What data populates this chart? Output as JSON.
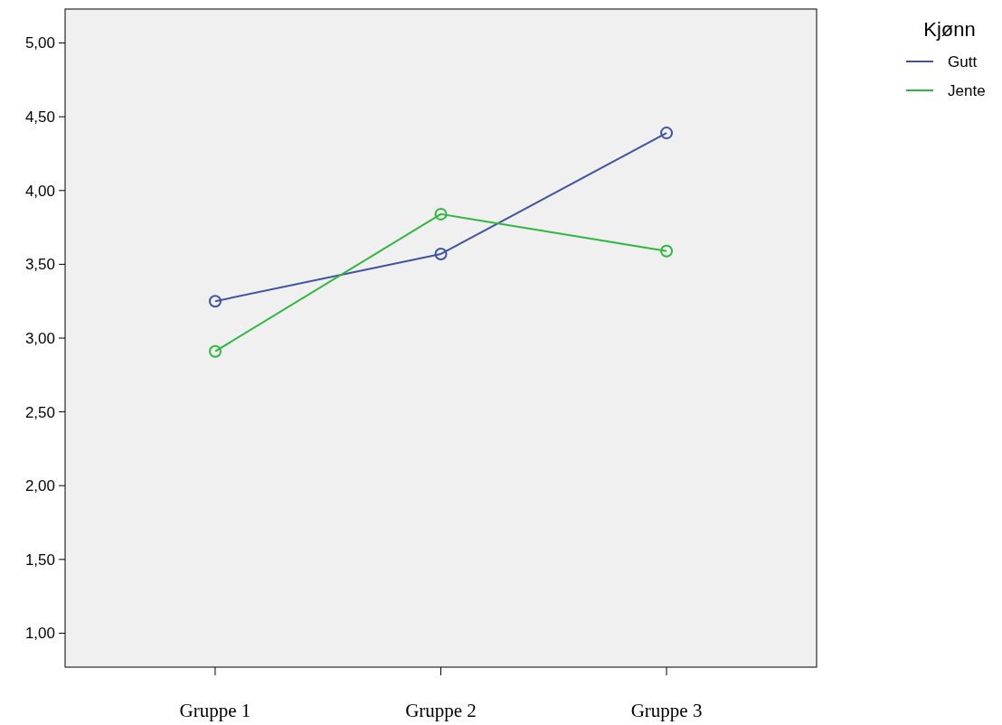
{
  "chart_data": {
    "type": "line",
    "legend_title": "Kjønn",
    "categories": [
      "Gruppe 1",
      "Gruppe 2",
      "Gruppe 3"
    ],
    "series": [
      {
        "name": "Gutt",
        "color": "#3e53a4",
        "values": [
          3.25,
          3.57,
          4.39
        ]
      },
      {
        "name": "Jente",
        "color": "#2db83d",
        "values": [
          2.91,
          3.84,
          3.59
        ]
      }
    ],
    "ylim": [
      0.77,
      5.23
    ],
    "yticks": [
      {
        "value": 1,
        "label": "1,00"
      },
      {
        "value": 1.5,
        "label": "1,50"
      },
      {
        "value": 2,
        "label": "2,00"
      },
      {
        "value": 2.5,
        "label": "2,50"
      },
      {
        "value": 3,
        "label": "3,00"
      },
      {
        "value": 3.5,
        "label": "3,50"
      },
      {
        "value": 4,
        "label": "4,00"
      },
      {
        "value": 4.5,
        "label": "4,50"
      },
      {
        "value": 5,
        "label": "5,00"
      }
    ],
    "marker": "circle",
    "line_style": "solid",
    "legend": "top right",
    "grid": false
  }
}
